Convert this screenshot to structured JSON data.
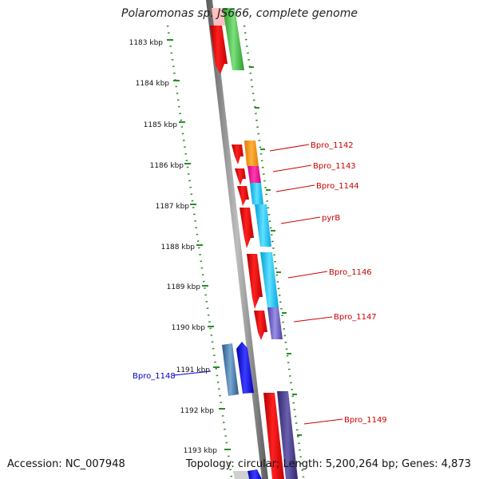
{
  "title": "Polaromonas sp. JS666, complete genome",
  "accession_text": "Accession: NC_007948",
  "topology_text": "Topology: circular; Length: 5,200,264 bp; Genes: 4,873",
  "colors": {
    "backbone": "#7f7f7f",
    "tick_dots": "#2a8a2a",
    "forward_label": "#cc0000",
    "reverse_label": "#0000cc"
  },
  "ruler_ticks": [
    "1183 kbp",
    "1184 kbp",
    "1185 kbp",
    "1186 kbp",
    "1187 kbp",
    "1188 kbp",
    "1189 kbp",
    "1190 kbp",
    "1191 kbp",
    "1192 kbp",
    "1193 kbp"
  ],
  "gene_labels": [
    {
      "text": "Bpro_1142",
      "strand": "forward"
    },
    {
      "text": "Bpro_1143",
      "strand": "forward"
    },
    {
      "text": "Bpro_1144",
      "strand": "forward"
    },
    {
      "text": "pyrB",
      "strand": "forward"
    },
    {
      "text": "Bpro_1146",
      "strand": "forward"
    },
    {
      "text": "Bpro_1147",
      "strand": "forward"
    },
    {
      "text": "Bpro_1148",
      "strand": "reverse"
    },
    {
      "text": "Bpro_1149",
      "strand": "forward"
    }
  ]
}
